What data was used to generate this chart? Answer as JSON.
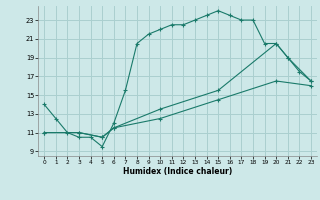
{
  "xlabel": "Humidex (Indice chaleur)",
  "background_color": "#cde8e8",
  "grid_color": "#aacfcf",
  "line_color": "#1a7a6a",
  "xlim": [
    -0.5,
    23.5
  ],
  "ylim": [
    8.5,
    24.5
  ],
  "xticks": [
    0,
    1,
    2,
    3,
    4,
    5,
    6,
    7,
    8,
    9,
    10,
    11,
    12,
    13,
    14,
    15,
    16,
    17,
    18,
    19,
    20,
    21,
    22,
    23
  ],
  "yticks": [
    9,
    11,
    13,
    15,
    17,
    19,
    21,
    23
  ],
  "line1_x": [
    0,
    1,
    2,
    3,
    4,
    5,
    6,
    7,
    8,
    9,
    10,
    11,
    12,
    13,
    14,
    15,
    16,
    17,
    18,
    19,
    20,
    21,
    22,
    23
  ],
  "line1_y": [
    14,
    12.5,
    11,
    10.5,
    10.5,
    9.5,
    12,
    15.5,
    20.5,
    21.5,
    22,
    22.5,
    22.5,
    23,
    23.5,
    24,
    23.5,
    23,
    23,
    20.5,
    20.5,
    19,
    17.5,
    16.5
  ],
  "line2_x": [
    0,
    3,
    5,
    6,
    10,
    15,
    20,
    21,
    23
  ],
  "line2_y": [
    11,
    11,
    10.5,
    11.5,
    13.5,
    15.5,
    20.5,
    19,
    16.5
  ],
  "line3_x": [
    0,
    3,
    5,
    6,
    10,
    15,
    20,
    23
  ],
  "line3_y": [
    11,
    11,
    10.5,
    11.5,
    12.5,
    14.5,
    16.5,
    16
  ]
}
